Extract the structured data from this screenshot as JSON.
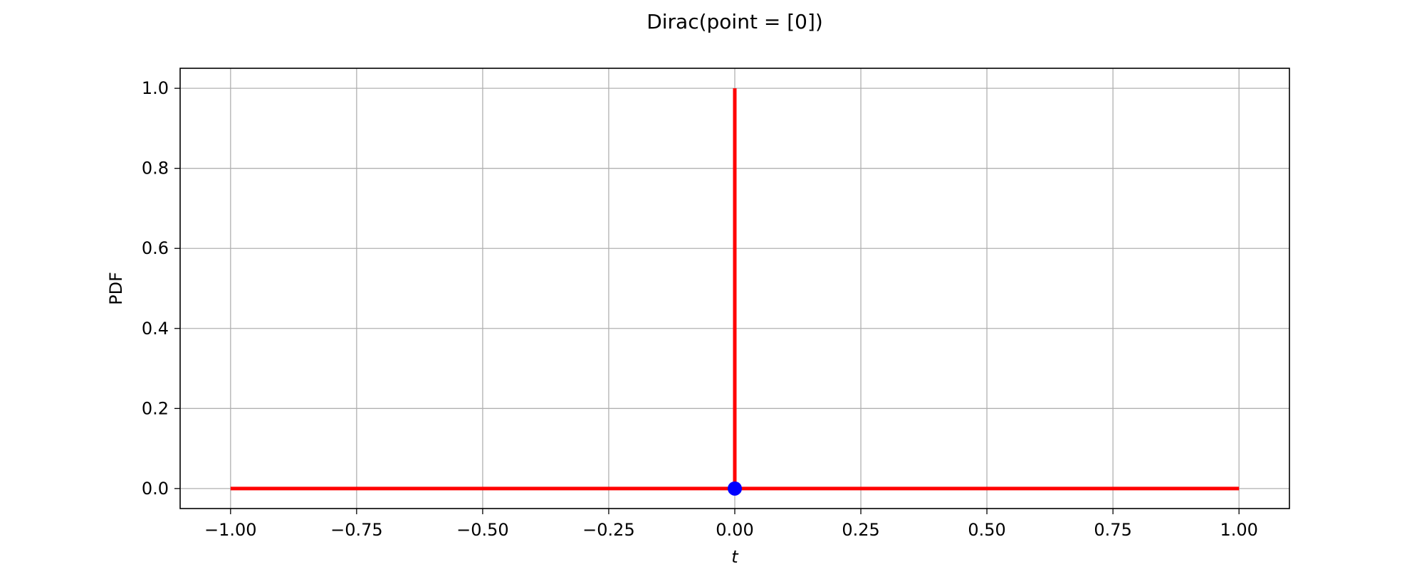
{
  "chart_data": {
    "type": "line",
    "title": "Dirac(point = [0])",
    "xlabel": "t",
    "ylabel": "PDF",
    "xlim": [
      -1.1,
      1.1
    ],
    "ylim": [
      -0.05,
      1.05
    ],
    "grid": true,
    "x_ticks": [
      -1.0,
      -0.75,
      -0.5,
      -0.25,
      0.0,
      0.25,
      0.5,
      0.75,
      1.0
    ],
    "x_tick_labels": [
      "−1.00",
      "−0.75",
      "−0.50",
      "−0.25",
      "0.00",
      "0.25",
      "0.50",
      "0.75",
      "1.00"
    ],
    "y_ticks": [
      0.0,
      0.2,
      0.4,
      0.6,
      0.8,
      1.0
    ],
    "y_tick_labels": [
      "0.0",
      "0.2",
      "0.4",
      "0.6",
      "0.8",
      "1.0"
    ],
    "series": [
      {
        "kind": "line",
        "color": "#ff0000",
        "x": [
          -1.0,
          0.0
        ],
        "y": [
          0.0,
          0.0
        ]
      },
      {
        "kind": "line",
        "color": "#ff0000",
        "x": [
          0.0,
          0.0
        ],
        "y": [
          0.0,
          1.0
        ]
      },
      {
        "kind": "line",
        "color": "#ff0000",
        "x": [
          0.0,
          1.0
        ],
        "y": [
          0.0,
          0.0
        ]
      },
      {
        "kind": "marker",
        "color": "#0000ff",
        "x": [
          0.0
        ],
        "y": [
          0.0
        ]
      }
    ],
    "colors": {
      "grid": "#b0b0b0",
      "frame": "#000000",
      "line": "#ff0000",
      "marker": "#0000ff"
    }
  }
}
